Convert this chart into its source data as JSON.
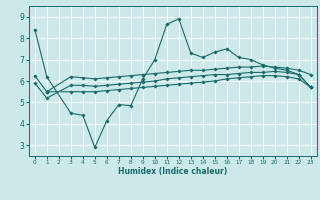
{
  "xlabel": "Humidex (Indice chaleur)",
  "bg_color": "#cce8e8",
  "grid_color": "#ffffff",
  "line_color": "#1a6b6b",
  "xlim": [
    -0.5,
    23.5
  ],
  "ylim": [
    2.5,
    9.5
  ],
  "xticks": [
    0,
    1,
    2,
    3,
    4,
    5,
    6,
    7,
    8,
    9,
    10,
    11,
    12,
    13,
    14,
    15,
    16,
    17,
    18,
    19,
    20,
    21,
    22,
    23
  ],
  "yticks": [
    3,
    4,
    5,
    6,
    7,
    8,
    9
  ],
  "line1_x": [
    0,
    1,
    3,
    4,
    5,
    6,
    7,
    8,
    9,
    10,
    11,
    12,
    13,
    14,
    15,
    16,
    17,
    18,
    19,
    20,
    21,
    22,
    23
  ],
  "line1_y": [
    8.4,
    6.2,
    4.5,
    4.4,
    2.9,
    4.15,
    4.9,
    4.85,
    6.1,
    7.0,
    8.65,
    8.9,
    7.3,
    7.1,
    7.35,
    7.5,
    7.1,
    7.0,
    6.75,
    6.6,
    6.5,
    6.3,
    5.7
  ],
  "line2_x": [
    0,
    1,
    3,
    4,
    5,
    6,
    7,
    8,
    9,
    10,
    11,
    12,
    13,
    14,
    15,
    16,
    17,
    18,
    19,
    20,
    21,
    22,
    23
  ],
  "line2_y": [
    6.25,
    5.5,
    6.2,
    6.15,
    6.1,
    6.15,
    6.2,
    6.25,
    6.3,
    6.35,
    6.4,
    6.45,
    6.5,
    6.5,
    6.55,
    6.6,
    6.65,
    6.65,
    6.7,
    6.65,
    6.6,
    6.5,
    6.3
  ],
  "line3_x": [
    0,
    1,
    3,
    4,
    5,
    6,
    7,
    8,
    9,
    10,
    11,
    12,
    13,
    14,
    15,
    16,
    17,
    18,
    19,
    20,
    21,
    22,
    23
  ],
  "line3_y": [
    5.9,
    5.2,
    5.8,
    5.8,
    5.75,
    5.8,
    5.85,
    5.9,
    5.95,
    6.0,
    6.1,
    6.15,
    6.2,
    6.25,
    6.3,
    6.3,
    6.35,
    6.4,
    6.4,
    6.45,
    6.4,
    6.3,
    5.7
  ],
  "line4_x": [
    1,
    3,
    4,
    5,
    6,
    7,
    8,
    9,
    10,
    11,
    12,
    13,
    14,
    15,
    16,
    17,
    18,
    19,
    20,
    21,
    22,
    23
  ],
  "line4_y": [
    5.5,
    5.5,
    5.5,
    5.5,
    5.55,
    5.6,
    5.65,
    5.7,
    5.75,
    5.8,
    5.85,
    5.9,
    5.95,
    6.0,
    6.1,
    6.15,
    6.2,
    6.25,
    6.25,
    6.2,
    6.1,
    5.7
  ]
}
